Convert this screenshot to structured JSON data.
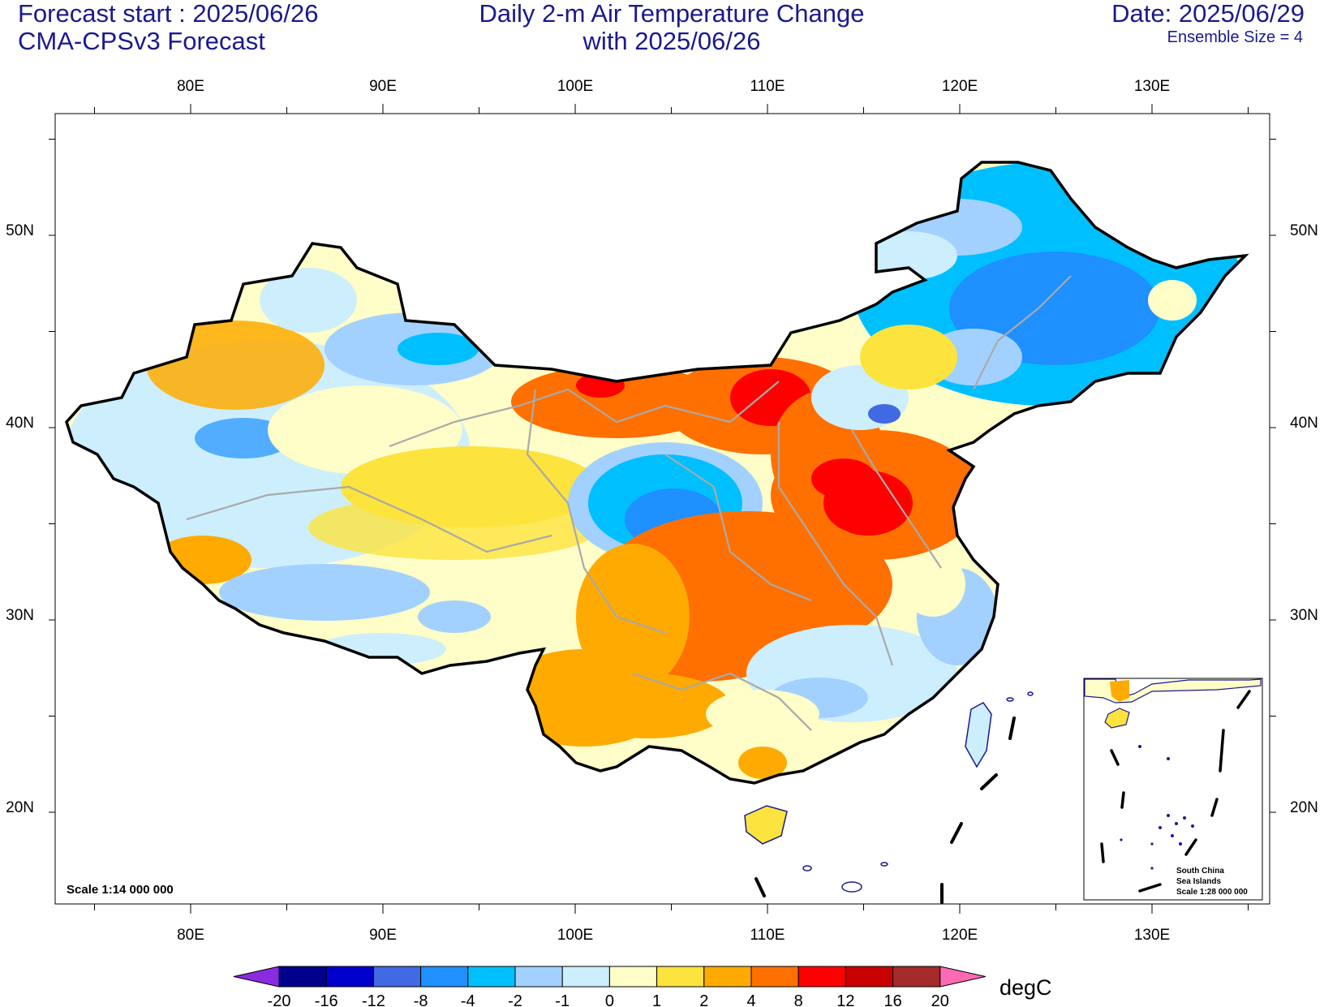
{
  "header": {
    "forecast_start": "Forecast start : 2025/06/26",
    "model": "CMA-CPSv3 Forecast",
    "title_line1": "Daily 2-m Air Temperature Change",
    "title_line2": "with 2025/06/26",
    "date": "Date: 2025/06/29",
    "ensemble": "Ensemble Size = 4"
  },
  "axes": {
    "lon_labels": [
      "80E",
      "90E",
      "100E",
      "110E",
      "120E",
      "130E"
    ],
    "lat_labels": [
      "50N",
      "40N",
      "30N",
      "20N"
    ]
  },
  "map": {
    "scale_label": "Scale 1:14 000 000",
    "inset_label_1": "South China",
    "inset_label_2": "Sea Islands",
    "inset_label_3": "Scale 1:28 000 000"
  },
  "legend": {
    "unit": "degC",
    "ticks": [
      "-20",
      "-16",
      "-12",
      "-8",
      "-4",
      "-2",
      "-1",
      "0",
      "1",
      "2",
      "4",
      "8",
      "12",
      "16",
      "20"
    ],
    "colors": [
      "#8a2be2",
      "#00008b",
      "#0000cd",
      "#4169e1",
      "#1e90ff",
      "#00bfff",
      "#a3d1ff",
      "#cdeefd",
      "#fffdc8",
      "#fce33d",
      "#ffaa00",
      "#ff7000",
      "#ff0000",
      "#c80000",
      "#a52a2a",
      "#ff69b4"
    ]
  }
}
